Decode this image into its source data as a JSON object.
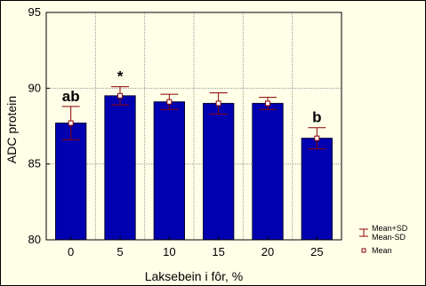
{
  "chart_data": {
    "type": "bar",
    "title": "",
    "xlabel": "Laksebein i fôr, %",
    "ylabel": "ADC protein",
    "categories": [
      "0",
      "5",
      "10",
      "15",
      "20",
      "25"
    ],
    "ylim": [
      80,
      95
    ],
    "yticks": [
      80,
      85,
      90,
      95
    ],
    "series": [
      {
        "values": [
          87.7,
          89.5,
          89.1,
          89.0,
          89.0,
          86.7
        ],
        "upper": [
          88.8,
          90.1,
          89.6,
          89.7,
          89.4,
          87.4
        ],
        "lower": [
          86.6,
          88.9,
          88.6,
          88.3,
          88.6,
          86.0
        ]
      }
    ],
    "annotations": [
      "ab",
      "*",
      "",
      "",
      "",
      "b"
    ],
    "grid": true,
    "legend": {
      "placement": "bottom-right",
      "entries": [
        "Mean+SD",
        "Mean-SD",
        "Mean"
      ]
    },
    "colors": {
      "bar_fill": "#0000b0",
      "bar_edge": "#000033",
      "error_bar": "#8b0000",
      "background": "#ffffe8",
      "grid": "#9a9a9a"
    }
  }
}
